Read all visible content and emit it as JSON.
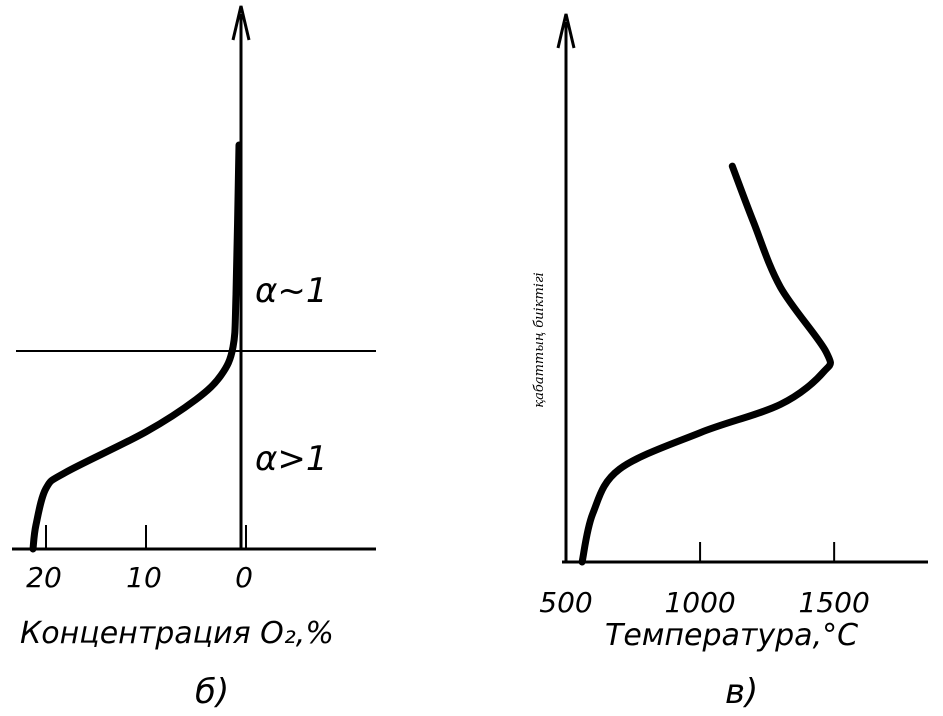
{
  "chart_data": [
    {
      "type": "line",
      "panel_label": "б)",
      "xlabel": "Концентрация O₂,%",
      "ylabel": "",
      "x_reversed": true,
      "xlim": [
        23,
        -13
      ],
      "ylim": [
        0,
        1
      ],
      "xticks": [
        {
          "value": 20,
          "label": "20"
        },
        {
          "value": 10,
          "label": "10"
        },
        {
          "value": 0,
          "label": "0"
        }
      ],
      "regions": [
        {
          "label": "α~1"
        },
        {
          "label": "α>1"
        }
      ],
      "boundary_y": 0.49,
      "series": [
        {
          "points": [
            {
              "x": 21.3,
              "y": 0.0
            },
            {
              "x": 21.0,
              "y": 0.06
            },
            {
              "x": 20.0,
              "y": 0.15
            },
            {
              "x": 18.0,
              "y": 0.19
            },
            {
              "x": 10.0,
              "y": 0.29
            },
            {
              "x": 5.0,
              "y": 0.37
            },
            {
              "x": 2.5,
              "y": 0.43
            },
            {
              "x": 1.3,
              "y": 0.5
            },
            {
              "x": 1.0,
              "y": 0.63
            },
            {
              "x": 0.7,
              "y": 1.0
            }
          ]
        }
      ],
      "grid": false,
      "legend": "none"
    },
    {
      "type": "line",
      "panel_label": "в)",
      "xlabel": "Температура,°C",
      "ylabel": "қабаттың биіктігі",
      "xlim": [
        500,
        1850
      ],
      "ylim": [
        0,
        1
      ],
      "xticks": [
        {
          "value": 500,
          "label": "500"
        },
        {
          "value": 1000,
          "label": "1000"
        },
        {
          "value": 1500,
          "label": "1500"
        }
      ],
      "series": [
        {
          "points": [
            {
              "x": 560,
              "y": 0.0
            },
            {
              "x": 600,
              "y": 0.12
            },
            {
              "x": 700,
              "y": 0.23
            },
            {
              "x": 1000,
              "y": 0.32
            },
            {
              "x": 1300,
              "y": 0.39
            },
            {
              "x": 1460,
              "y": 0.47
            },
            {
              "x": 1470,
              "y": 0.52
            },
            {
              "x": 1300,
              "y": 0.68
            },
            {
              "x": 1200,
              "y": 0.84
            },
            {
              "x": 1120,
              "y": 0.98
            }
          ]
        }
      ],
      "grid": false,
      "legend": "none"
    }
  ]
}
